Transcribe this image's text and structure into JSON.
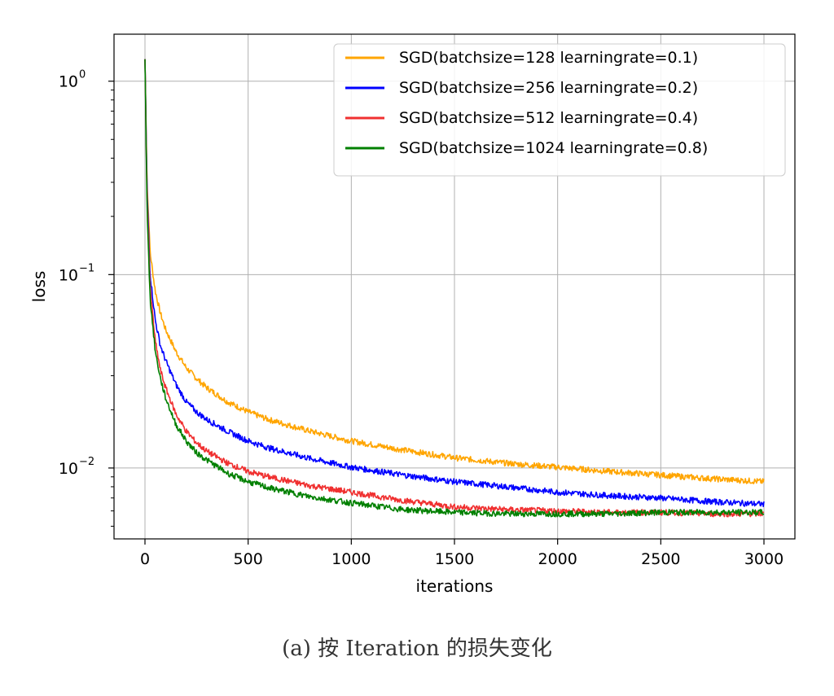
{
  "chart_data": {
    "type": "line",
    "title": "",
    "xlabel": "iterations",
    "ylabel": "loss",
    "xlim": [
      -150,
      3150
    ],
    "ylim": [
      0.0043,
      1.75
    ],
    "yscale": "log",
    "grid": true,
    "legend_position": "upper-right",
    "x_ticks": [
      0,
      500,
      1000,
      1500,
      2000,
      2500,
      3000
    ],
    "x_tick_labels": [
      "0",
      "500",
      "1000",
      "1500",
      "2000",
      "2500",
      "3000"
    ],
    "y_ticks": [
      {
        "value": 1,
        "base": "10",
        "exp": "0"
      },
      {
        "value": 0.1,
        "base": "10",
        "exp": "−1"
      },
      {
        "value": 0.01,
        "base": "10",
        "exp": "−2"
      }
    ],
    "series": [
      {
        "name": "SGD(batchsize=128 learningrate=0.1)",
        "color": "#ffa500",
        "x": [
          0,
          10,
          25,
          50,
          75,
          100,
          150,
          200,
          250,
          300,
          400,
          500,
          600,
          800,
          1000,
          1250,
          1500,
          1750,
          2000,
          2250,
          2500,
          2750,
          3000
        ],
        "y": [
          1.3,
          0.3,
          0.13,
          0.082,
          0.063,
          0.052,
          0.04,
          0.033,
          0.029,
          0.026,
          0.022,
          0.0195,
          0.0178,
          0.0155,
          0.0138,
          0.0124,
          0.0113,
          0.0106,
          0.0101,
          0.0096,
          0.0092,
          0.0088,
          0.0085
        ]
      },
      {
        "name": "SGD(batchsize=256 learningrate=0.2)",
        "color": "#0000ff",
        "x": [
          0,
          10,
          25,
          50,
          75,
          100,
          150,
          200,
          250,
          300,
          400,
          500,
          600,
          800,
          1000,
          1250,
          1500,
          1750,
          2000,
          2250,
          2500,
          2750,
          3000
        ],
        "y": [
          1.3,
          0.28,
          0.1,
          0.058,
          0.043,
          0.036,
          0.027,
          0.022,
          0.0195,
          0.0178,
          0.0155,
          0.0138,
          0.0127,
          0.0112,
          0.0101,
          0.0092,
          0.0085,
          0.008,
          0.0075,
          0.0072,
          0.007,
          0.0067,
          0.0065
        ]
      },
      {
        "name": "SGD(batchsize=512 learningrate=0.4)",
        "color": "#f03030",
        "x": [
          0,
          10,
          25,
          50,
          75,
          100,
          150,
          200,
          250,
          300,
          400,
          500,
          600,
          800,
          1000,
          1250,
          1500,
          1750,
          2000,
          2250,
          2500,
          2750,
          3000
        ],
        "y": [
          1.3,
          0.25,
          0.085,
          0.045,
          0.032,
          0.026,
          0.019,
          0.0155,
          0.0135,
          0.0122,
          0.0106,
          0.0096,
          0.009,
          0.0081,
          0.0075,
          0.0068,
          0.0063,
          0.0061,
          0.006,
          0.0059,
          0.0059,
          0.0058,
          0.0058
        ]
      },
      {
        "name": "SGD(batchsize=1024 learningrate=0.8)",
        "color": "#008000",
        "x": [
          0,
          10,
          25,
          50,
          75,
          100,
          150,
          200,
          250,
          300,
          400,
          500,
          600,
          800,
          1000,
          1250,
          1500,
          1750,
          2000,
          2250,
          2500,
          2750,
          3000
        ],
        "y": [
          1.3,
          0.22,
          0.075,
          0.04,
          0.029,
          0.023,
          0.0168,
          0.0138,
          0.012,
          0.011,
          0.0094,
          0.0085,
          0.0079,
          0.0071,
          0.0066,
          0.0061,
          0.0059,
          0.0058,
          0.0058,
          0.0058,
          0.0059,
          0.0059,
          0.0059
        ]
      }
    ]
  },
  "caption": "(a) 按 Iteration 的损失变化"
}
